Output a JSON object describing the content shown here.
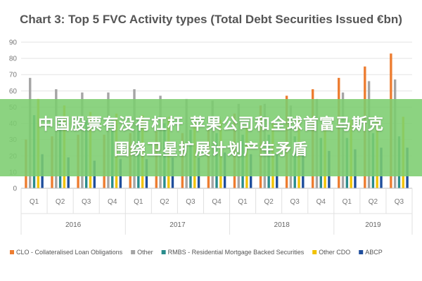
{
  "chart_data": {
    "type": "bar",
    "title": "Chart 3: Top 5 FVC Activity types (Total Debt Securities Issued €bn)",
    "xlabel": "",
    "ylabel": "",
    "ylim": [
      0,
      90
    ],
    "yticks": [
      0,
      10,
      20,
      30,
      40,
      50,
      60,
      70,
      80,
      90
    ],
    "grid": true,
    "legend_position": "bottom",
    "categories": [
      "Q1",
      "Q2",
      "Q3",
      "Q4",
      "Q1",
      "Q2",
      "Q3",
      "Q4",
      "Q1",
      "Q2",
      "Q3",
      "Q4",
      "Q1",
      "Q2",
      "Q3"
    ],
    "year_groups": [
      {
        "label": "2016",
        "span": 4
      },
      {
        "label": "2017",
        "span": 4
      },
      {
        "label": "2018",
        "span": 4
      },
      {
        "label": "2019",
        "span": 3
      }
    ],
    "series": [
      {
        "name": "CLO - Collateralised Loan Obligations",
        "color": "#ed7d31",
        "values": [
          30,
          32,
          33,
          33,
          34,
          35,
          34,
          36,
          46,
          51,
          57,
          61,
          68,
          75,
          83
        ]
      },
      {
        "name": "Other",
        "color": "#a5a5a5",
        "values": [
          68,
          61,
          59,
          59,
          61,
          57,
          55,
          54,
          52,
          52,
          51,
          55,
          59,
          66,
          67
        ]
      },
      {
        "name": "RMBS - Residential Mortgage Backed Securities",
        "color": "#2a8c8c",
        "values": [
          45,
          44,
          42,
          42,
          42,
          40,
          36,
          34,
          33,
          33,
          32,
          31,
          31,
          34,
          32
        ]
      },
      {
        "name": "Other CDO",
        "color": "#f2c200",
        "values": [
          55,
          51,
          47,
          46,
          45,
          44,
          42,
          42,
          38,
          40,
          42,
          39,
          42,
          42,
          44
        ]
      },
      {
        "name": "ABCP",
        "color": "#1f4e9c",
        "values": [
          21,
          19,
          17,
          18,
          18,
          19,
          19,
          22,
          21,
          21,
          22,
          23,
          24,
          25,
          25
        ]
      }
    ]
  },
  "overlay": {
    "line1": "中国股票有没有杠杆 苹果公司和全球首富马斯克",
    "line2": "围绕卫星扩展计划产生矛盾"
  }
}
